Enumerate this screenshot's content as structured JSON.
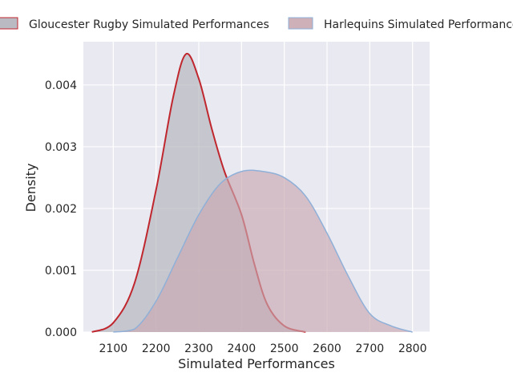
{
  "chart_data": {
    "type": "area",
    "title": "",
    "xlabel": "Simulated Performances",
    "ylabel": "Density",
    "xlim": [
      2030,
      2840
    ],
    "ylim": [
      0,
      0.0047
    ],
    "xticks": [
      2100,
      2200,
      2300,
      2400,
      2500,
      2600,
      2700,
      2800
    ],
    "yticks": [
      0.0,
      0.001,
      0.002,
      0.003,
      0.004
    ],
    "ytick_labels": [
      "0.000",
      "0.001",
      "0.002",
      "0.003",
      "0.004"
    ],
    "grid": true,
    "legend_position": "top",
    "series": [
      {
        "name": "Gloucester Rugby Simulated Performances",
        "fill": "#b2b4bb",
        "line": "#c0262d",
        "points": [
          [
            2050,
            0.0
          ],
          [
            2100,
            0.00015
          ],
          [
            2150,
            0.0008
          ],
          [
            2200,
            0.0023
          ],
          [
            2240,
            0.0038
          ],
          [
            2270,
            0.0045
          ],
          [
            2300,
            0.0041
          ],
          [
            2330,
            0.0033
          ],
          [
            2360,
            0.0026
          ],
          [
            2400,
            0.0019
          ],
          [
            2430,
            0.0011
          ],
          [
            2460,
            0.00045
          ],
          [
            2500,
            0.0001
          ],
          [
            2550,
            0.0
          ]
        ]
      },
      {
        "name": "Harlequins Simulated Performances",
        "fill": "#c9a7b1",
        "line": "#8fb0d8",
        "points": [
          [
            2100,
            0.0
          ],
          [
            2150,
            5e-05
          ],
          [
            2200,
            0.0005
          ],
          [
            2250,
            0.0012
          ],
          [
            2300,
            0.0019
          ],
          [
            2350,
            0.0024
          ],
          [
            2400,
            0.0026
          ],
          [
            2450,
            0.0026
          ],
          [
            2500,
            0.0025
          ],
          [
            2550,
            0.0022
          ],
          [
            2600,
            0.0016
          ],
          [
            2650,
            0.0009
          ],
          [
            2700,
            0.0003
          ],
          [
            2750,
            0.0001
          ],
          [
            2800,
            0.0
          ]
        ]
      }
    ]
  }
}
